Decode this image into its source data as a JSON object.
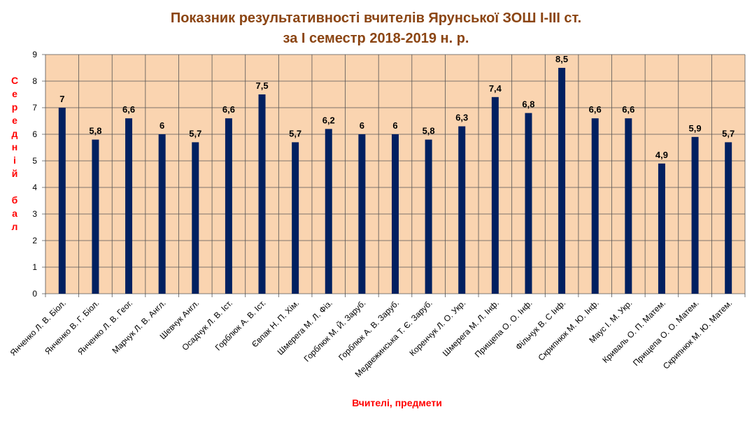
{
  "chart_data": {
    "type": "bar",
    "title_lines": [
      "Показник результативності вчителів Ярунської ЗОШ І-ІІІ ст.",
      "за І семестр 2018-2019 н. р."
    ],
    "xlabel": "Вчителі, предмети",
    "ylabel": "Середній бал",
    "ylabel_lines": [
      "С",
      "е",
      "р",
      "е",
      "д",
      "н",
      "і",
      "й",
      "",
      "б",
      "а",
      "л"
    ],
    "ylim": [
      0,
      9
    ],
    "yticks": [
      0,
      1,
      2,
      3,
      4,
      5,
      6,
      7,
      8,
      9
    ],
    "grid": true,
    "categories": [
      "Янченко Л. В. Біол.",
      "Янченко В. Г. Біол.",
      "Янченко Л. В. Геог.",
      "Марчук Л. В. Англ.",
      "Шевчук Англ.",
      "Осадчук Л. В. Іст.",
      "Горблюк А. В. Іст.",
      "Євпак Н. П. Хім.",
      "Шмерега М. Л. Фіз.",
      "Горблюк М. Й. Заруб.",
      "Горблюк А. В. Заруб.",
      "Медвежинська Т. Є. Заруб.",
      "Коренчук Л. О. Укр.",
      "Шмерега М. Л. Інф.",
      "Прищепа О. О. Інф.",
      "Фільчук В. С Інф.",
      "Скрипнюк М. Ю. Інф.",
      "Маус І. М. Укр.",
      "Криваль О. П. Матем.",
      "Прищепа О. О. Матем.",
      "Скрипнюк М. Ю. Матем."
    ],
    "values": [
      7,
      5.8,
      6.6,
      6,
      5.7,
      6.6,
      7.5,
      5.7,
      6.2,
      6,
      6,
      5.8,
      6.3,
      7.4,
      6.8,
      8.5,
      6.6,
      6.6,
      4.9,
      5.9,
      5.7
    ],
    "value_labels": [
      "7",
      "5,8",
      "6,6",
      "6",
      "5,7",
      "6,6",
      "7,5",
      "5,7",
      "6,2",
      "6",
      "6",
      "5,8",
      "6,3",
      "7,4",
      "6,8",
      "8,5",
      "6,6",
      "6,6",
      "4,9",
      "5,9",
      "5,7"
    ],
    "colors": {
      "bar": "#002060",
      "plot_background": "#FAD4B0",
      "gridline": "#555555",
      "title": "#8B4513",
      "axis_title": "#ff0000"
    }
  }
}
